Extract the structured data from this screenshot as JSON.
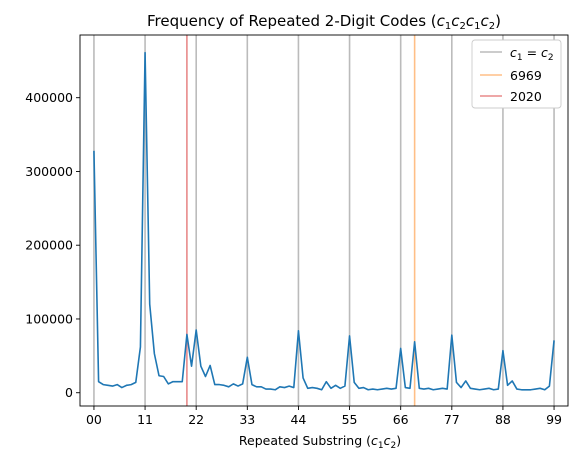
{
  "chart_data": {
    "type": "line",
    "title_prefix": "Frequency of Repeated 2-Digit Codes (",
    "title_math": "c1c2c1c2",
    "title_suffix": ")",
    "xlabel_prefix": "Repeated Substring (",
    "xlabel_math": "c1c2",
    "xlabel_suffix": ")",
    "ylabel": "",
    "xlim": [
      -3,
      102
    ],
    "ylim": [
      -18000,
      485000
    ],
    "xticks": [
      0,
      11,
      22,
      33,
      44,
      55,
      66,
      77,
      88,
      99
    ],
    "xtick_labels": [
      "00",
      "11",
      "22",
      "33",
      "44",
      "55",
      "66",
      "77",
      "88",
      "99"
    ],
    "yticks": [
      0,
      100000,
      200000,
      300000,
      400000
    ],
    "ytick_labels": [
      "0",
      "100000",
      "200000",
      "300000",
      "400000"
    ],
    "grid": false,
    "legend_position": "top-right",
    "series": [
      {
        "color": "#1f77b4",
        "x": [
          0,
          1,
          2,
          3,
          4,
          5,
          6,
          7,
          8,
          9,
          10,
          11,
          12,
          13,
          14,
          15,
          16,
          17,
          18,
          19,
          20,
          21,
          22,
          23,
          24,
          25,
          26,
          27,
          28,
          29,
          30,
          31,
          32,
          33,
          34,
          35,
          36,
          37,
          38,
          39,
          40,
          41,
          42,
          43,
          44,
          45,
          46,
          47,
          48,
          49,
          50,
          51,
          52,
          53,
          54,
          55,
          56,
          57,
          58,
          59,
          60,
          61,
          62,
          63,
          64,
          65,
          66,
          67,
          68,
          69,
          70,
          71,
          72,
          73,
          74,
          75,
          76,
          77,
          78,
          79,
          80,
          81,
          82,
          83,
          84,
          85,
          86,
          87,
          88,
          89,
          90,
          91,
          92,
          93,
          94,
          95,
          96,
          97,
          98,
          99
        ],
        "y": [
          328000,
          15000,
          11000,
          10000,
          9000,
          11000,
          7000,
          10000,
          11000,
          14000,
          62000,
          461000,
          120000,
          53000,
          23000,
          22000,
          12000,
          15000,
          15000,
          15000,
          79000,
          36000,
          85000,
          36000,
          22000,
          37000,
          11000,
          11000,
          10000,
          8000,
          12000,
          9000,
          12000,
          48000,
          11000,
          8000,
          8000,
          5000,
          5000,
          4000,
          8000,
          7000,
          9000,
          7000,
          84000,
          20000,
          6000,
          7000,
          6000,
          4000,
          15000,
          6000,
          10000,
          6000,
          9000,
          77000,
          14000,
          6000,
          7000,
          4000,
          5000,
          4000,
          5000,
          6000,
          5000,
          6000,
          60000,
          7000,
          6000,
          69000,
          6000,
          5000,
          6000,
          4000,
          5000,
          6000,
          5000,
          78000,
          14000,
          7000,
          16000,
          6000,
          5000,
          4000,
          5000,
          6000,
          4000,
          5000,
          57000,
          10000,
          16000,
          5000,
          4000,
          4000,
          4000,
          5000,
          6000,
          4000,
          9000,
          71000
        ]
      }
    ],
    "vlines": [
      {
        "group": "c1eqc2",
        "color": "#bbbbbb",
        "x": [
          0,
          11,
          22,
          33,
          44,
          55,
          66,
          77,
          88,
          99
        ]
      },
      {
        "group": "6969",
        "color": "#ffbf87",
        "x": [
          69
        ]
      },
      {
        "group": "2020",
        "color": "#e88a8a",
        "x": [
          20
        ]
      }
    ],
    "legend": [
      {
        "label_math": "c1 = c2",
        "color": "#bbbbbb"
      },
      {
        "label": "6969",
        "color": "#ffbf87"
      },
      {
        "label": "2020",
        "color": "#e88a8a"
      }
    ]
  }
}
